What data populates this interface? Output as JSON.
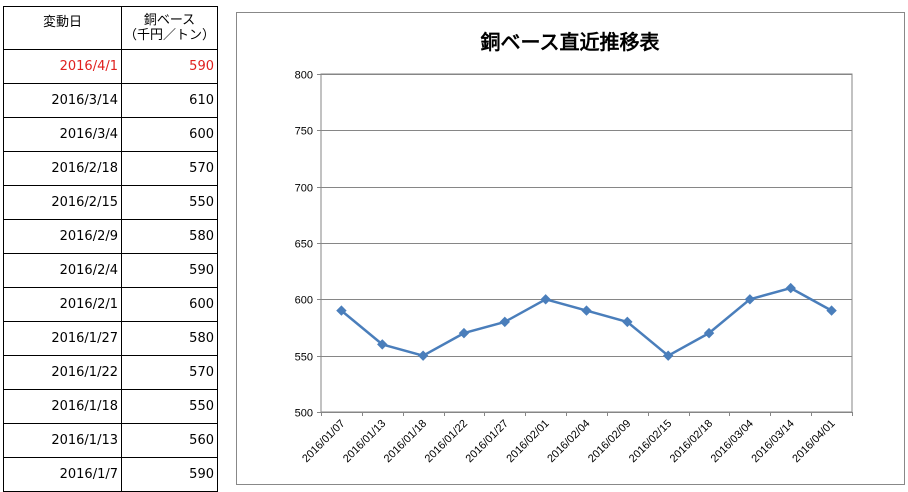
{
  "table": {
    "header": {
      "date": "変動日",
      "price_line1": "銅ベース",
      "price_line2": "（千円／トン）"
    },
    "rows": [
      {
        "date": "2016/4/1",
        "price": "590",
        "highlight": true
      },
      {
        "date": "2016/3/14",
        "price": "610"
      },
      {
        "date": "2016/3/4",
        "price": "600"
      },
      {
        "date": "2016/2/18",
        "price": "570"
      },
      {
        "date": "2016/2/15",
        "price": "550"
      },
      {
        "date": "2016/2/9",
        "price": "580"
      },
      {
        "date": "2016/2/4",
        "price": "590"
      },
      {
        "date": "2016/2/1",
        "price": "600"
      },
      {
        "date": "2016/1/27",
        "price": "580"
      },
      {
        "date": "2016/1/22",
        "price": "570"
      },
      {
        "date": "2016/1/18",
        "price": "550"
      },
      {
        "date": "2016/1/13",
        "price": "560"
      },
      {
        "date": "2016/1/7",
        "price": "590"
      }
    ],
    "highlight_color": "#e0201e"
  },
  "chart_data": {
    "type": "line",
    "title": "銅ベース直近推移表",
    "xlabel": "",
    "ylabel": "",
    "categories": [
      "2016/01/07",
      "2016/01/13",
      "2016/01/18",
      "2016/01/22",
      "2016/01/27",
      "2016/02/01",
      "2016/02/04",
      "2016/02/09",
      "2016/02/15",
      "2016/02/18",
      "2016/03/04",
      "2016/03/14",
      "2016/04/01"
    ],
    "series": [
      {
        "values": [
          590,
          560,
          550,
          570,
          580,
          600,
          590,
          580,
          550,
          570,
          600,
          610,
          590
        ]
      }
    ],
    "ylim": [
      500,
      800
    ],
    "yticks": [
      500,
      550,
      600,
      650,
      700,
      750,
      800
    ],
    "grid": true,
    "legend": "none",
    "line_color": "#4a7ebb",
    "gridline_color": "#868686"
  }
}
